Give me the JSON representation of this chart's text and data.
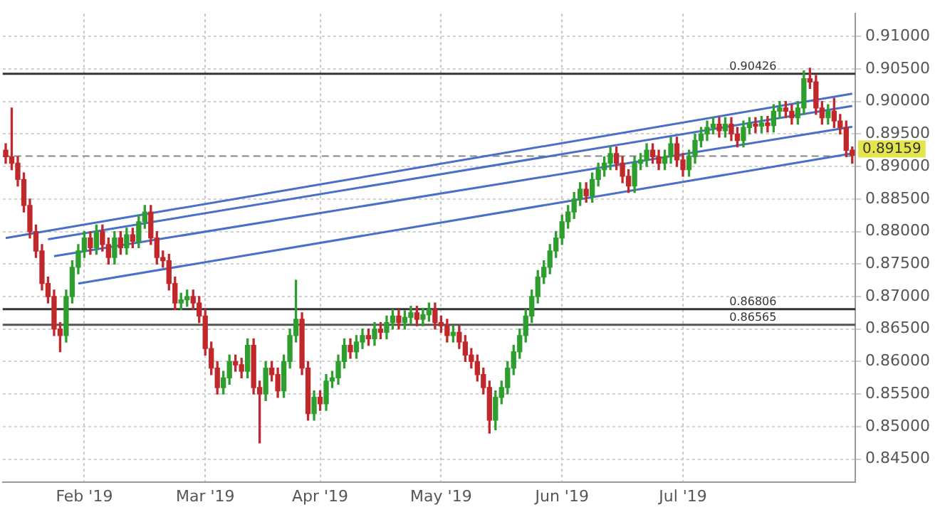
{
  "chart_data": {
    "type": "candlestick",
    "categories": [
      null,
      null,
      null,
      null,
      null,
      null,
      null,
      null,
      null,
      null,
      null,
      null,
      null,
      "Feb '19",
      null,
      null,
      null,
      null,
      null,
      null,
      null,
      null,
      null,
      null,
      null,
      null,
      null,
      null,
      null,
      null,
      null,
      null,
      null,
      "Mar '19",
      null,
      null,
      null,
      null,
      null,
      null,
      null,
      null,
      null,
      null,
      null,
      null,
      null,
      null,
      null,
      null,
      null,
      null,
      "Apr '19",
      null,
      null,
      null,
      null,
      null,
      null,
      null,
      null,
      null,
      null,
      null,
      null,
      null,
      null,
      null,
      null,
      null,
      null,
      null,
      "May '19",
      null,
      null,
      null,
      null,
      null,
      null,
      null,
      null,
      null,
      null,
      null,
      null,
      null,
      null,
      null,
      null,
      null,
      null,
      null,
      "Jun '19",
      null,
      null,
      null,
      null,
      null,
      null,
      null,
      null,
      null,
      null,
      null,
      null,
      null,
      null,
      null,
      null,
      null,
      null,
      null,
      "Jul '19",
      null,
      null,
      null,
      null,
      null,
      null,
      null,
      null,
      null,
      null,
      null,
      null,
      null,
      null,
      null,
      null,
      null,
      null,
      null,
      null,
      null,
      null,
      null,
      null,
      null,
      null,
      null,
      null
    ],
    "ohlc": [
      [
        0.8925,
        0.8935,
        0.8905,
        0.8915
      ],
      [
        0.8915,
        0.899,
        0.8895,
        0.8905
      ],
      [
        0.8905,
        0.8915,
        0.887,
        0.888
      ],
      [
        0.888,
        0.889,
        0.883,
        0.884
      ],
      [
        0.884,
        0.885,
        0.879,
        0.88
      ],
      [
        0.88,
        0.881,
        0.876,
        0.877
      ],
      [
        0.877,
        0.878,
        0.871,
        0.872
      ],
      [
        0.872,
        0.873,
        0.869,
        0.87
      ],
      [
        0.87,
        0.871,
        0.864,
        0.865
      ],
      [
        0.865,
        0.866,
        0.8615,
        0.864
      ],
      [
        0.864,
        0.871,
        0.863,
        0.87
      ],
      [
        0.87,
        0.8755,
        0.869,
        0.8745
      ],
      [
        0.8745,
        0.878,
        0.8735,
        0.877
      ],
      [
        0.877,
        0.88,
        0.876,
        0.879
      ],
      [
        0.879,
        0.88,
        0.8765,
        0.8775
      ],
      [
        0.8775,
        0.881,
        0.8765,
        0.88
      ],
      [
        0.88,
        0.881,
        0.877,
        0.878
      ],
      [
        0.878,
        0.879,
        0.875,
        0.876
      ],
      [
        0.876,
        0.88,
        0.875,
        0.879
      ],
      [
        0.879,
        0.88,
        0.8765,
        0.8775
      ],
      [
        0.8775,
        0.8805,
        0.8765,
        0.8795
      ],
      [
        0.8795,
        0.8805,
        0.8775,
        0.8785
      ],
      [
        0.8785,
        0.8825,
        0.8775,
        0.8815
      ],
      [
        0.8815,
        0.884,
        0.8805,
        0.883
      ],
      [
        0.883,
        0.884,
        0.878,
        0.879
      ],
      [
        0.879,
        0.88,
        0.875,
        0.876
      ],
      [
        0.876,
        0.877,
        0.8745,
        0.8755
      ],
      [
        0.8755,
        0.8765,
        0.871,
        0.872
      ],
      [
        0.872,
        0.873,
        0.868,
        0.869
      ],
      [
        0.869,
        0.8705,
        0.868,
        0.8695
      ],
      [
        0.8695,
        0.871,
        0.8685,
        0.87
      ],
      [
        0.87,
        0.871,
        0.868,
        0.869
      ],
      [
        0.869,
        0.87,
        0.866,
        0.867
      ],
      [
        0.867,
        0.868,
        0.861,
        0.862
      ],
      [
        0.862,
        0.863,
        0.858,
        0.859
      ],
      [
        0.859,
        0.86,
        0.855,
        0.856
      ],
      [
        0.856,
        0.8585,
        0.855,
        0.8575
      ],
      [
        0.8575,
        0.861,
        0.8565,
        0.86
      ],
      [
        0.86,
        0.861,
        0.8585,
        0.8595
      ],
      [
        0.8595,
        0.8605,
        0.8575,
        0.8585
      ],
      [
        0.8585,
        0.8635,
        0.8575,
        0.8625
      ],
      [
        0.8625,
        0.8635,
        0.855,
        0.856
      ],
      [
        0.856,
        0.857,
        0.8475,
        0.855
      ],
      [
        0.855,
        0.86,
        0.854,
        0.859
      ],
      [
        0.859,
        0.86,
        0.857,
        0.858
      ],
      [
        0.858,
        0.859,
        0.8545,
        0.8555
      ],
      [
        0.8555,
        0.861,
        0.8545,
        0.86
      ],
      [
        0.86,
        0.865,
        0.859,
        0.864
      ],
      [
        0.864,
        0.8725,
        0.863,
        0.8665
      ],
      [
        0.8665,
        0.8675,
        0.858,
        0.859
      ],
      [
        0.859,
        0.86,
        0.851,
        0.852
      ],
      [
        0.852,
        0.8555,
        0.851,
        0.8545
      ],
      [
        0.8545,
        0.8555,
        0.8525,
        0.8535
      ],
      [
        0.8535,
        0.858,
        0.8525,
        0.857
      ],
      [
        0.857,
        0.8585,
        0.856,
        0.8575
      ],
      [
        0.8575,
        0.861,
        0.8565,
        0.86
      ],
      [
        0.86,
        0.8635,
        0.859,
        0.8625
      ],
      [
        0.8625,
        0.8635,
        0.8605,
        0.8615
      ],
      [
        0.8615,
        0.864,
        0.8605,
        0.863
      ],
      [
        0.863,
        0.865,
        0.862,
        0.864
      ],
      [
        0.864,
        0.865,
        0.8625,
        0.8635
      ],
      [
        0.8635,
        0.866,
        0.8625,
        0.865
      ],
      [
        0.865,
        0.866,
        0.8635,
        0.8645
      ],
      [
        0.8645,
        0.867,
        0.8635,
        0.866
      ],
      [
        0.866,
        0.868,
        0.865,
        0.867
      ],
      [
        0.867,
        0.868,
        0.865,
        0.866
      ],
      [
        0.866,
        0.8678,
        0.865,
        0.8668
      ],
      [
        0.8668,
        0.8685,
        0.8658,
        0.8675
      ],
      [
        0.8675,
        0.8685,
        0.8655,
        0.8665
      ],
      [
        0.8665,
        0.8682,
        0.8655,
        0.8672
      ],
      [
        0.8672,
        0.869,
        0.8662,
        0.868
      ],
      [
        0.868,
        0.869,
        0.865,
        0.866
      ],
      [
        0.866,
        0.867,
        0.8645,
        0.8655
      ],
      [
        0.8655,
        0.8665,
        0.863,
        0.864
      ],
      [
        0.864,
        0.8655,
        0.863,
        0.8645
      ],
      [
        0.8645,
        0.8655,
        0.862,
        0.863
      ],
      [
        0.863,
        0.864,
        0.86,
        0.861
      ],
      [
        0.861,
        0.862,
        0.859,
        0.86
      ],
      [
        0.86,
        0.861,
        0.857,
        0.858
      ],
      [
        0.858,
        0.859,
        0.855,
        0.856
      ],
      [
        0.856,
        0.857,
        0.849,
        0.851
      ],
      [
        0.851,
        0.8555,
        0.8495,
        0.8545
      ],
      [
        0.8545,
        0.857,
        0.8535,
        0.856
      ],
      [
        0.856,
        0.86,
        0.855,
        0.859
      ],
      [
        0.859,
        0.8625,
        0.858,
        0.8615
      ],
      [
        0.8615,
        0.865,
        0.8605,
        0.864
      ],
      [
        0.864,
        0.868,
        0.863,
        0.867
      ],
      [
        0.867,
        0.871,
        0.866,
        0.87
      ],
      [
        0.87,
        0.874,
        0.869,
        0.873
      ],
      [
        0.873,
        0.8755,
        0.872,
        0.8745
      ],
      [
        0.8745,
        0.878,
        0.8735,
        0.877
      ],
      [
        0.877,
        0.88,
        0.876,
        0.879
      ],
      [
        0.879,
        0.8825,
        0.878,
        0.8815
      ],
      [
        0.8815,
        0.884,
        0.8805,
        0.883
      ],
      [
        0.883,
        0.886,
        0.882,
        0.885
      ],
      [
        0.885,
        0.8875,
        0.884,
        0.8865
      ],
      [
        0.8865,
        0.8875,
        0.8845,
        0.8855
      ],
      [
        0.8855,
        0.889,
        0.8845,
        0.888
      ],
      [
        0.888,
        0.8905,
        0.887,
        0.8895
      ],
      [
        0.8895,
        0.8915,
        0.8885,
        0.8905
      ],
      [
        0.8905,
        0.893,
        0.8895,
        0.892
      ],
      [
        0.892,
        0.893,
        0.8895,
        0.8905
      ],
      [
        0.8905,
        0.8915,
        0.8875,
        0.8885
      ],
      [
        0.8885,
        0.8895,
        0.886,
        0.887
      ],
      [
        0.887,
        0.8915,
        0.886,
        0.8905
      ],
      [
        0.8905,
        0.892,
        0.8895,
        0.891
      ],
      [
        0.891,
        0.8935,
        0.89,
        0.8925
      ],
      [
        0.8925,
        0.8935,
        0.8905,
        0.8915
      ],
      [
        0.8915,
        0.8925,
        0.8895,
        0.8905
      ],
      [
        0.8905,
        0.8925,
        0.8895,
        0.8915
      ],
      [
        0.8915,
        0.8945,
        0.8905,
        0.8935
      ],
      [
        0.8935,
        0.8945,
        0.89,
        0.891
      ],
      [
        0.891,
        0.892,
        0.8885,
        0.8895
      ],
      [
        0.8895,
        0.8925,
        0.8885,
        0.8915
      ],
      [
        0.8915,
        0.895,
        0.8905,
        0.894
      ],
      [
        0.894,
        0.896,
        0.893,
        0.895
      ],
      [
        0.895,
        0.897,
        0.894,
        0.896
      ],
      [
        0.896,
        0.8975,
        0.895,
        0.8965
      ],
      [
        0.8965,
        0.8975,
        0.8945,
        0.8955
      ],
      [
        0.8955,
        0.8975,
        0.8945,
        0.8965
      ],
      [
        0.8965,
        0.8975,
        0.894,
        0.895
      ],
      [
        0.895,
        0.896,
        0.893,
        0.894
      ],
      [
        0.894,
        0.897,
        0.893,
        0.896
      ],
      [
        0.896,
        0.8975,
        0.895,
        0.8965
      ],
      [
        0.8965,
        0.8975,
        0.8952,
        0.8962
      ],
      [
        0.8962,
        0.8977,
        0.8952,
        0.8967
      ],
      [
        0.8967,
        0.8977,
        0.8953,
        0.8963
      ],
      [
        0.8963,
        0.8995,
        0.8953,
        0.8985
      ],
      [
        0.8985,
        0.9,
        0.8975,
        0.899
      ],
      [
        0.899,
        0.9,
        0.8975,
        0.8985
      ],
      [
        0.8985,
        0.8995,
        0.8965,
        0.8975
      ],
      [
        0.8975,
        0.9,
        0.8965,
        0.899
      ],
      [
        0.899,
        0.9047,
        0.898,
        0.9035
      ],
      [
        0.9035,
        0.9051,
        0.902,
        0.903
      ],
      [
        0.903,
        0.904,
        0.898,
        0.899
      ],
      [
        0.899,
        0.9,
        0.8965,
        0.8975
      ],
      [
        0.8975,
        0.8995,
        0.8965,
        0.8985
      ],
      [
        0.8985,
        0.9005,
        0.896,
        0.897
      ],
      [
        0.897,
        0.898,
        0.895,
        0.896
      ],
      [
        0.896,
        0.897,
        0.8915,
        0.8925
      ],
      [
        0.8925,
        0.893,
        0.8905,
        0.8917
      ]
    ],
    "colors": [
      "#c0282c",
      "#c0282c",
      "#c0282c",
      "#c0282c",
      "#c0282c",
      "#c0282c",
      "#c0282c",
      "#c0282c",
      "#c0282c",
      "#c0282c",
      "#2e9e2e",
      "#2e9e2e",
      "#2e9e2e",
      "#2e9e2e",
      "#c0282c",
      "#2e9e2e",
      "#c0282c",
      "#c0282c",
      "#2e9e2e",
      "#c0282c",
      "#2e9e2e",
      "#c0282c",
      "#2e9e2e",
      "#2e9e2e",
      "#c0282c",
      "#c0282c",
      "#c0282c",
      "#c0282c",
      "#c0282c",
      "#2e9e2e",
      "#2e9e2e",
      "#c0282c",
      "#c0282c",
      "#c0282c",
      "#c0282c",
      "#c0282c",
      "#2e9e2e",
      "#2e9e2e",
      "#c0282c",
      "#c0282c",
      "#2e9e2e",
      "#c0282c",
      "#c0282c",
      "#2e9e2e",
      "#c0282c",
      "#c0282c",
      "#2e9e2e",
      "#2e9e2e",
      "#2e9e2e",
      "#c0282c",
      "#c0282c",
      "#2e9e2e",
      "#c0282c",
      "#2e9e2e",
      "#2e9e2e",
      "#2e9e2e",
      "#2e9e2e",
      "#c0282c",
      "#2e9e2e",
      "#2e9e2e",
      "#c0282c",
      "#2e9e2e",
      "#c0282c",
      "#2e9e2e",
      "#2e9e2e",
      "#c0282c",
      "#2e9e2e",
      "#2e9e2e",
      "#c0282c",
      "#2e9e2e",
      "#2e9e2e",
      "#c0282c",
      "#c0282c",
      "#c0282c",
      "#2e9e2e",
      "#c0282c",
      "#c0282c",
      "#c0282c",
      "#c0282c",
      "#c0282c",
      "#c0282c",
      "#2e9e2e",
      "#2e9e2e",
      "#2e9e2e",
      "#2e9e2e",
      "#2e9e2e",
      "#2e9e2e",
      "#2e9e2e",
      "#2e9e2e",
      "#2e9e2e",
      "#2e9e2e",
      "#2e9e2e",
      "#2e9e2e",
      "#2e9e2e",
      "#2e9e2e",
      "#2e9e2e",
      "#c0282c",
      "#2e9e2e",
      "#2e9e2e",
      "#2e9e2e",
      "#2e9e2e",
      "#c0282c",
      "#c0282c",
      "#c0282c",
      "#2e9e2e",
      "#2e9e2e",
      "#2e9e2e",
      "#c0282c",
      "#c0282c",
      "#2e9e2e",
      "#2e9e2e",
      "#c0282c",
      "#c0282c",
      "#2e9e2e",
      "#2e9e2e",
      "#2e9e2e",
      "#2e9e2e",
      "#2e9e2e",
      "#c0282c",
      "#2e9e2e",
      "#c0282c",
      "#c0282c",
      "#2e9e2e",
      "#2e9e2e",
      "#c0282c",
      "#2e9e2e",
      "#c0282c",
      "#2e9e2e",
      "#2e9e2e",
      "#c0282c",
      "#c0282c",
      "#2e9e2e",
      "#2e9e2e",
      "#c0282c",
      "#c0282c",
      "#c0282c",
      "#2e9e2e",
      "#c0282c",
      "#c0282c",
      "#c0282c",
      "#c0282c"
    ],
    "series": [
      {
        "type": "line",
        "color": "#4a6fc8",
        "values": [
          0.879,
          null,
          null,
          null,
          null,
          null,
          null,
          null,
          null,
          null,
          null,
          null,
          null,
          null,
          null,
          null,
          null,
          null,
          null,
          null,
          null,
          null,
          null,
          null,
          null,
          null,
          null,
          null,
          null,
          null,
          null,
          null,
          null,
          null,
          null,
          null,
          null,
          null,
          null,
          null,
          null,
          null,
          null,
          null,
          null,
          null,
          null,
          null,
          null,
          null,
          null,
          null,
          null,
          null,
          null,
          null,
          null,
          null,
          null,
          null,
          null,
          null,
          null,
          null,
          null,
          null,
          null,
          null,
          null,
          null,
          null,
          null,
          null,
          null,
          null,
          null,
          null,
          null,
          null,
          null,
          null,
          null,
          null,
          null,
          null,
          null,
          null,
          null,
          null,
          null,
          null,
          null,
          null,
          null,
          null,
          null,
          null,
          null,
          null,
          null,
          null,
          null,
          null,
          null,
          null,
          null,
          null,
          null,
          null,
          null,
          null,
          null,
          null,
          null,
          null,
          null,
          null,
          null,
          null,
          null,
          null,
          null,
          null,
          null,
          null,
          null,
          null,
          null,
          null,
          null,
          null,
          null,
          null,
          null,
          null,
          null,
          null,
          null,
          null,
          null,
          0.9012
        ]
      },
      {
        "type": "line",
        "color": "#4a6fc8",
        "values": [
          null,
          null,
          null,
          null,
          null,
          null,
          null,
          0.8788,
          null,
          null,
          null,
          null,
          null,
          null,
          null,
          null,
          null,
          null,
          null,
          null,
          null,
          null,
          null,
          null,
          null,
          null,
          null,
          null,
          null,
          null,
          null,
          null,
          null,
          null,
          null,
          null,
          null,
          null,
          null,
          null,
          null,
          null,
          null,
          null,
          null,
          null,
          null,
          null,
          null,
          null,
          null,
          null,
          null,
          null,
          null,
          null,
          null,
          null,
          null,
          null,
          null,
          null,
          null,
          null,
          null,
          null,
          null,
          null,
          null,
          null,
          null,
          null,
          null,
          null,
          null,
          null,
          null,
          null,
          null,
          null,
          null,
          null,
          null,
          null,
          null,
          null,
          null,
          null,
          null,
          null,
          null,
          null,
          null,
          null,
          null,
          null,
          null,
          null,
          null,
          null,
          null,
          null,
          null,
          null,
          null,
          null,
          null,
          null,
          null,
          null,
          null,
          null,
          null,
          null,
          null,
          null,
          null,
          null,
          null,
          null,
          null,
          null,
          null,
          null,
          null,
          null,
          null,
          null,
          null,
          null,
          null,
          null,
          null,
          null,
          null,
          null,
          null,
          null,
          null,
          null,
          0.8993
        ]
      },
      {
        "type": "line",
        "color": "#4a6fc8",
        "values": [
          null,
          null,
          null,
          null,
          null,
          null,
          null,
          null,
          0.8762,
          null,
          null,
          null,
          null,
          null,
          null,
          null,
          null,
          null,
          null,
          null,
          null,
          null,
          null,
          null,
          null,
          null,
          null,
          null,
          null,
          null,
          null,
          null,
          null,
          null,
          null,
          null,
          null,
          null,
          null,
          null,
          null,
          null,
          null,
          null,
          null,
          null,
          null,
          null,
          null,
          null,
          null,
          null,
          null,
          null,
          null,
          null,
          null,
          null,
          null,
          null,
          null,
          null,
          null,
          null,
          null,
          null,
          null,
          null,
          null,
          null,
          null,
          null,
          null,
          null,
          null,
          null,
          null,
          null,
          null,
          null,
          null,
          null,
          null,
          null,
          null,
          null,
          null,
          null,
          null,
          null,
          null,
          null,
          null,
          null,
          null,
          null,
          null,
          null,
          null,
          null,
          null,
          null,
          null,
          null,
          null,
          null,
          null,
          null,
          null,
          null,
          null,
          null,
          null,
          null,
          null,
          null,
          null,
          null,
          null,
          null,
          null,
          null,
          null,
          null,
          null,
          null,
          null,
          null,
          null,
          null,
          null,
          null,
          null,
          null,
          null,
          null,
          null,
          null,
          null,
          null,
          0.8961
        ]
      },
      {
        "type": "line",
        "color": "#4a6fc8",
        "values": [
          null,
          null,
          null,
          null,
          null,
          null,
          null,
          null,
          null,
          null,
          null,
          null,
          0.872,
          null,
          null,
          null,
          null,
          null,
          null,
          null,
          null,
          null,
          null,
          null,
          null,
          null,
          null,
          null,
          null,
          null,
          null,
          null,
          null,
          null,
          null,
          null,
          null,
          null,
          null,
          null,
          null,
          null,
          null,
          null,
          null,
          null,
          null,
          null,
          null,
          null,
          null,
          null,
          null,
          null,
          null,
          null,
          null,
          null,
          null,
          null,
          null,
          null,
          null,
          null,
          null,
          null,
          null,
          null,
          null,
          null,
          null,
          null,
          null,
          null,
          null,
          null,
          null,
          null,
          null,
          null,
          null,
          null,
          null,
          null,
          null,
          null,
          null,
          null,
          null,
          null,
          null,
          null,
          null,
          null,
          null,
          null,
          null,
          null,
          null,
          null,
          null,
          null,
          null,
          null,
          null,
          null,
          null,
          null,
          null,
          null,
          null,
          null,
          null,
          null,
          null,
          null,
          null,
          null,
          null,
          null,
          null,
          null,
          null,
          null,
          null,
          null,
          null,
          null,
          null,
          null,
          null,
          null,
          null,
          null,
          null,
          null,
          null,
          null,
          null,
          null,
          0.892
        ]
      }
    ],
    "ylim": [
      0.8415,
      0.9135
    ],
    "yticks": [
      {
        "value": 0.845,
        "label": "0.84500"
      },
      {
        "value": 0.85,
        "label": "0.85000"
      },
      {
        "value": 0.855,
        "label": "0.85500"
      },
      {
        "value": 0.86,
        "label": "0.86000"
      },
      {
        "value": 0.865,
        "label": "0.86500"
      },
      {
        "value": 0.87,
        "label": "0.87000"
      },
      {
        "value": 0.875,
        "label": "0.87500"
      },
      {
        "value": 0.88,
        "label": "0.88000"
      },
      {
        "value": 0.885,
        "label": "0.88500"
      },
      {
        "value": 0.89,
        "label": "0.89000"
      },
      {
        "value": 0.895,
        "label": "0.89500"
      },
      {
        "value": 0.9,
        "label": "0.90000"
      },
      {
        "value": 0.905,
        "label": "0.90500"
      },
      {
        "value": 0.91,
        "label": "0.91000"
      }
    ],
    "ref_lines": [
      {
        "axis": "y",
        "value": 0.90426,
        "label": "0.90426",
        "color": "#333333"
      },
      {
        "axis": "y",
        "value": 0.86806,
        "label": "0.86806",
        "color": "#333333"
      },
      {
        "axis": "y",
        "value": 0.86565,
        "label": "0.86565",
        "color": "#555555"
      },
      {
        "axis": "y",
        "value": 0.89159,
        "label": "0.89159",
        "color": "#888888",
        "line_style": "dashed"
      }
    ],
    "grid": true
  }
}
